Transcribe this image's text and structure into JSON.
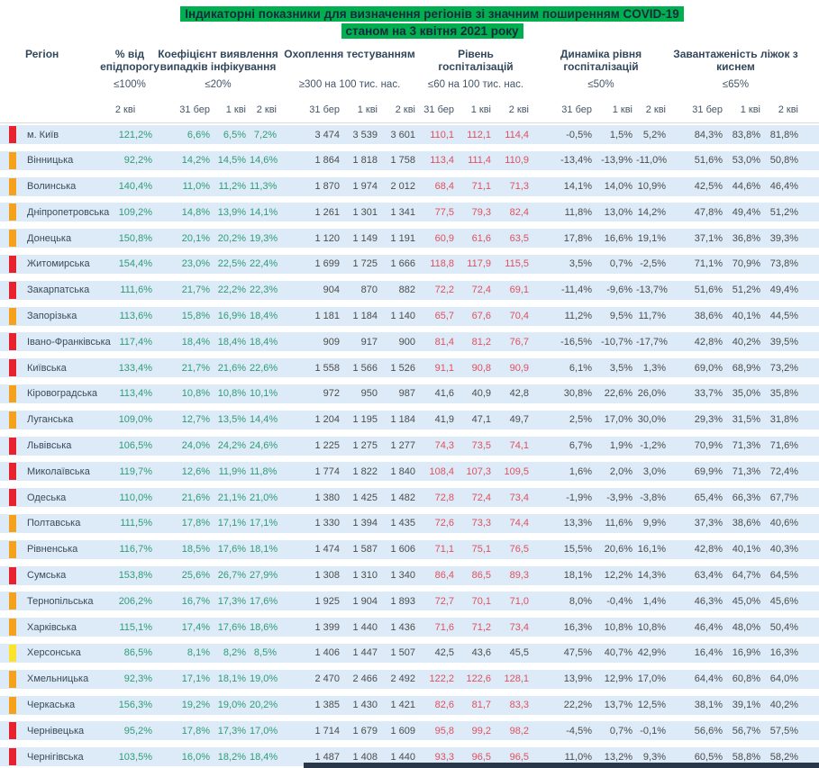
{
  "title": {
    "line1": "Індикаторні показники для визначення регіонів зі значним поширенням COVID-19",
    "line2": "станом на 3 квітня 2021 року"
  },
  "colors": {
    "title_highlight": "#00b050",
    "row_background": "#dcebf7",
    "value_green": "#2f9c78",
    "value_red": "#e0505e",
    "markers": {
      "red": "#e8212f",
      "orange": "#f4a21c",
      "yellow": "#fce32b"
    },
    "bottom_bar": "#28374a"
  },
  "chart_data": {
    "type": "table",
    "columns": {
      "region_label": "Регіон",
      "groups": [
        {
          "name": "% від епідпорогу",
          "threshold": "≤100%",
          "dates": [
            "2 кві"
          ]
        },
        {
          "name": "Коефіцієнт виявлення випадків інфікування",
          "threshold": "≤20%",
          "dates": [
            "31 бер",
            "1 кві",
            "2 кві"
          ]
        },
        {
          "name": "Охоплення тестуванням",
          "threshold": "≥300 на 100 тис. нас.",
          "dates": [
            "31 бер",
            "1 кві",
            "2 кві"
          ]
        },
        {
          "name": "Рівень госпіталізацій",
          "threshold": "≤60 на 100 тис. нас.",
          "dates": [
            "31 бер",
            "1 кві",
            "2 кві"
          ]
        },
        {
          "name": "Динаміка рівня госпіталізацій",
          "threshold": "≤50%",
          "dates": [
            "31 бер",
            "1 кві",
            "2 кві"
          ]
        },
        {
          "name": "Завантаженість ліжок з киснем",
          "threshold": "≤65%",
          "dates": [
            "31 бер",
            "1 кві",
            "2 кві"
          ]
        }
      ]
    },
    "rows": [
      {
        "region": "м. Київ",
        "marker": "red",
        "epid": "121,2%",
        "detect": [
          "6,6%",
          "6,5%",
          "7,2%"
        ],
        "testing": [
          "3 474",
          "3 539",
          "3 601"
        ],
        "hosp": [
          "110,1",
          "112,1",
          "114,4"
        ],
        "hosp_alert": true,
        "dynamics": [
          "-0,5%",
          "1,5%",
          "5,2%"
        ],
        "beds": [
          "84,3%",
          "83,8%",
          "81,8%"
        ]
      },
      {
        "region": "Вінницька",
        "marker": "orange",
        "epid": "92,2%",
        "detect": [
          "14,2%",
          "14,5%",
          "14,6%"
        ],
        "testing": [
          "1 864",
          "1 818",
          "1 758"
        ],
        "hosp": [
          "113,4",
          "111,4",
          "110,9"
        ],
        "hosp_alert": true,
        "dynamics": [
          "-13,4%",
          "-13,9%",
          "-11,0%"
        ],
        "beds": [
          "51,6%",
          "53,0%",
          "50,8%"
        ]
      },
      {
        "region": "Волинська",
        "marker": "orange",
        "epid": "140,4%",
        "detect": [
          "11,0%",
          "11,2%",
          "11,3%"
        ],
        "testing": [
          "1 870",
          "1 974",
          "2 012"
        ],
        "hosp": [
          "68,4",
          "71,1",
          "71,3"
        ],
        "hosp_alert": true,
        "dynamics": [
          "14,1%",
          "14,0%",
          "10,9%"
        ],
        "beds": [
          "42,5%",
          "44,6%",
          "46,4%"
        ]
      },
      {
        "region": "Дніпропетровська",
        "marker": "orange",
        "epid": "109,2%",
        "detect": [
          "14,8%",
          "13,9%",
          "14,1%"
        ],
        "testing": [
          "1 261",
          "1 301",
          "1 341"
        ],
        "hosp": [
          "77,5",
          "79,3",
          "82,4"
        ],
        "hosp_alert": true,
        "dynamics": [
          "11,8%",
          "13,0%",
          "14,2%"
        ],
        "beds": [
          "47,8%",
          "49,4%",
          "51,2%"
        ]
      },
      {
        "region": "Донецька",
        "marker": "orange",
        "epid": "150,8%",
        "detect": [
          "20,1%",
          "20,2%",
          "19,3%"
        ],
        "testing": [
          "1 120",
          "1 149",
          "1 191"
        ],
        "hosp": [
          "60,9",
          "61,6",
          "63,5"
        ],
        "hosp_alert": true,
        "dynamics": [
          "17,8%",
          "16,6%",
          "19,1%"
        ],
        "beds": [
          "37,1%",
          "36,8%",
          "39,3%"
        ]
      },
      {
        "region": "Житомирська",
        "marker": "red",
        "epid": "154,4%",
        "detect": [
          "23,0%",
          "22,5%",
          "22,4%"
        ],
        "testing": [
          "1 699",
          "1 725",
          "1 666"
        ],
        "hosp": [
          "118,8",
          "117,9",
          "115,5"
        ],
        "hosp_alert": true,
        "dynamics": [
          "3,5%",
          "0,7%",
          "-2,5%"
        ],
        "beds": [
          "71,1%",
          "70,9%",
          "73,8%"
        ]
      },
      {
        "region": "Закарпатська",
        "marker": "red",
        "epid": "111,6%",
        "detect": [
          "21,7%",
          "22,2%",
          "22,3%"
        ],
        "testing": [
          "904",
          "870",
          "882"
        ],
        "hosp": [
          "72,2",
          "72,4",
          "69,1"
        ],
        "hosp_alert": true,
        "dynamics": [
          "-11,4%",
          "-9,6%",
          "-13,7%"
        ],
        "beds": [
          "51,6%",
          "51,2%",
          "49,4%"
        ]
      },
      {
        "region": "Запорізька",
        "marker": "orange",
        "epid": "113,6%",
        "detect": [
          "15,8%",
          "16,9%",
          "18,4%"
        ],
        "testing": [
          "1 181",
          "1 184",
          "1 140"
        ],
        "hosp": [
          "65,7",
          "67,6",
          "70,4"
        ],
        "hosp_alert": true,
        "dynamics": [
          "11,2%",
          "9,5%",
          "11,7%"
        ],
        "beds": [
          "38,6%",
          "40,1%",
          "44,5%"
        ]
      },
      {
        "region": "Івано-Франківська",
        "marker": "red",
        "epid": "117,4%",
        "detect": [
          "18,4%",
          "18,4%",
          "18,4%"
        ],
        "testing": [
          "909",
          "917",
          "900"
        ],
        "hosp": [
          "81,4",
          "81,2",
          "76,7"
        ],
        "hosp_alert": true,
        "dynamics": [
          "-16,5%",
          "-10,7%",
          "-17,7%"
        ],
        "beds": [
          "42,8%",
          "40,2%",
          "39,5%"
        ]
      },
      {
        "region": "Київська",
        "marker": "red",
        "epid": "133,4%",
        "detect": [
          "21,7%",
          "21,6%",
          "22,6%"
        ],
        "testing": [
          "1 558",
          "1 566",
          "1 526"
        ],
        "hosp": [
          "91,1",
          "90,8",
          "90,9"
        ],
        "hosp_alert": true,
        "dynamics": [
          "6,1%",
          "3,5%",
          "1,3%"
        ],
        "beds": [
          "69,0%",
          "68,9%",
          "73,2%"
        ]
      },
      {
        "region": "Кіровоградська",
        "marker": "orange",
        "epid": "113,4%",
        "detect": [
          "10,8%",
          "10,8%",
          "10,1%"
        ],
        "testing": [
          "972",
          "950",
          "987"
        ],
        "hosp": [
          "41,6",
          "40,9",
          "42,8"
        ],
        "hosp_alert": false,
        "dynamics": [
          "30,8%",
          "22,6%",
          "26,0%"
        ],
        "beds": [
          "33,7%",
          "35,0%",
          "35,8%"
        ]
      },
      {
        "region": "Луганська",
        "marker": "orange",
        "epid": "109,0%",
        "detect": [
          "12,7%",
          "13,5%",
          "14,4%"
        ],
        "testing": [
          "1 204",
          "1 195",
          "1 184"
        ],
        "hosp": [
          "41,9",
          "47,1",
          "49,7"
        ],
        "hosp_alert": false,
        "dynamics": [
          "2,5%",
          "17,0%",
          "30,0%"
        ],
        "beds": [
          "29,3%",
          "31,5%",
          "31,8%"
        ]
      },
      {
        "region": "Львівська",
        "marker": "red",
        "epid": "106,5%",
        "detect": [
          "24,0%",
          "24,2%",
          "24,6%"
        ],
        "testing": [
          "1 225",
          "1 275",
          "1 277"
        ],
        "hosp": [
          "74,3",
          "73,5",
          "74,1"
        ],
        "hosp_alert": true,
        "dynamics": [
          "6,7%",
          "1,9%",
          "-1,2%"
        ],
        "beds": [
          "70,9%",
          "71,3%",
          "71,6%"
        ]
      },
      {
        "region": "Миколаївська",
        "marker": "red",
        "epid": "119,7%",
        "detect": [
          "12,6%",
          "11,9%",
          "11,8%"
        ],
        "testing": [
          "1 774",
          "1 822",
          "1 840"
        ],
        "hosp": [
          "108,4",
          "107,3",
          "109,5"
        ],
        "hosp_alert": true,
        "dynamics": [
          "1,6%",
          "2,0%",
          "3,0%"
        ],
        "beds": [
          "69,9%",
          "71,3%",
          "72,4%"
        ]
      },
      {
        "region": "Одеська",
        "marker": "red",
        "epid": "110,0%",
        "detect": [
          "21,6%",
          "21,1%",
          "21,0%"
        ],
        "testing": [
          "1 380",
          "1 425",
          "1 482"
        ],
        "hosp": [
          "72,8",
          "72,4",
          "73,4"
        ],
        "hosp_alert": true,
        "dynamics": [
          "-1,9%",
          "-3,9%",
          "-3,8%"
        ],
        "beds": [
          "65,4%",
          "66,3%",
          "67,7%"
        ]
      },
      {
        "region": "Полтавська",
        "marker": "orange",
        "epid": "111,5%",
        "detect": [
          "17,8%",
          "17,1%",
          "17,1%"
        ],
        "testing": [
          "1 330",
          "1 394",
          "1 435"
        ],
        "hosp": [
          "72,6",
          "73,3",
          "74,4"
        ],
        "hosp_alert": true,
        "dynamics": [
          "13,3%",
          "11,6%",
          "9,9%"
        ],
        "beds": [
          "37,3%",
          "38,6%",
          "40,6%"
        ]
      },
      {
        "region": "Рівненська",
        "marker": "orange",
        "epid": "116,7%",
        "detect": [
          "18,5%",
          "17,6%",
          "18,1%"
        ],
        "testing": [
          "1 474",
          "1 587",
          "1 606"
        ],
        "hosp": [
          "71,1",
          "75,1",
          "76,5"
        ],
        "hosp_alert": true,
        "dynamics": [
          "15,5%",
          "20,6%",
          "16,1%"
        ],
        "beds": [
          "42,8%",
          "40,1%",
          "40,3%"
        ]
      },
      {
        "region": "Сумська",
        "marker": "red",
        "epid": "153,8%",
        "detect": [
          "25,6%",
          "26,7%",
          "27,9%"
        ],
        "testing": [
          "1 308",
          "1 310",
          "1 340"
        ],
        "hosp": [
          "86,4",
          "86,5",
          "89,3"
        ],
        "hosp_alert": true,
        "dynamics": [
          "18,1%",
          "12,2%",
          "14,3%"
        ],
        "beds": [
          "63,4%",
          "64,7%",
          "64,5%"
        ]
      },
      {
        "region": "Тернопільська",
        "marker": "orange",
        "epid": "206,2%",
        "detect": [
          "16,7%",
          "17,3%",
          "17,6%"
        ],
        "testing": [
          "1 925",
          "1 904",
          "1 893"
        ],
        "hosp": [
          "72,7",
          "70,1",
          "71,0"
        ],
        "hosp_alert": true,
        "dynamics": [
          "8,0%",
          "-0,4%",
          "1,4%"
        ],
        "beds": [
          "46,3%",
          "45,0%",
          "45,6%"
        ]
      },
      {
        "region": "Харківська",
        "marker": "orange",
        "epid": "115,1%",
        "detect": [
          "17,4%",
          "17,6%",
          "18,6%"
        ],
        "testing": [
          "1 399",
          "1 440",
          "1 436"
        ],
        "hosp": [
          "71,6",
          "71,2",
          "73,4"
        ],
        "hosp_alert": true,
        "dynamics": [
          "16,3%",
          "10,8%",
          "10,8%"
        ],
        "beds": [
          "46,4%",
          "48,0%",
          "50,4%"
        ]
      },
      {
        "region": "Херсонська",
        "marker": "yellow",
        "epid": "86,5%",
        "detect": [
          "8,1%",
          "8,2%",
          "8,5%"
        ],
        "testing": [
          "1 406",
          "1 447",
          "1 507"
        ],
        "hosp": [
          "42,5",
          "43,6",
          "45,5"
        ],
        "hosp_alert": false,
        "dynamics": [
          "47,5%",
          "40,7%",
          "42,9%"
        ],
        "beds": [
          "16,4%",
          "16,9%",
          "16,3%"
        ]
      },
      {
        "region": "Хмельницька",
        "marker": "orange",
        "epid": "92,3%",
        "detect": [
          "17,1%",
          "18,1%",
          "19,0%"
        ],
        "testing": [
          "2 470",
          "2 466",
          "2 492"
        ],
        "hosp": [
          "122,2",
          "122,6",
          "128,1"
        ],
        "hosp_alert": true,
        "dynamics": [
          "13,9%",
          "12,9%",
          "17,0%"
        ],
        "beds": [
          "64,4%",
          "60,8%",
          "64,0%"
        ]
      },
      {
        "region": "Черкаська",
        "marker": "orange",
        "epid": "156,3%",
        "detect": [
          "19,2%",
          "19,0%",
          "20,2%"
        ],
        "testing": [
          "1 385",
          "1 430",
          "1 421"
        ],
        "hosp": [
          "82,6",
          "81,7",
          "83,3"
        ],
        "hosp_alert": true,
        "dynamics": [
          "22,2%",
          "13,7%",
          "12,5%"
        ],
        "beds": [
          "38,1%",
          "39,1%",
          "40,2%"
        ]
      },
      {
        "region": "Чернівецька",
        "marker": "red",
        "epid": "95,2%",
        "detect": [
          "17,8%",
          "17,3%",
          "17,0%"
        ],
        "testing": [
          "1 714",
          "1 679",
          "1 609"
        ],
        "hosp": [
          "95,8",
          "99,2",
          "98,2"
        ],
        "hosp_alert": true,
        "dynamics": [
          "-4,5%",
          "0,7%",
          "-0,1%"
        ],
        "beds": [
          "56,6%",
          "56,7%",
          "57,5%"
        ]
      },
      {
        "region": "Чернігівська",
        "marker": "red",
        "epid": "103,5%",
        "detect": [
          "16,0%",
          "18,2%",
          "18,4%"
        ],
        "testing": [
          "1 487",
          "1 408",
          "1 440"
        ],
        "hosp": [
          "93,3",
          "96,5",
          "96,5"
        ],
        "hosp_alert": true,
        "dynamics": [
          "11,0%",
          "13,2%",
          "9,3%"
        ],
        "beds": [
          "60,5%",
          "58,8%",
          "58,2%"
        ]
      }
    ]
  }
}
